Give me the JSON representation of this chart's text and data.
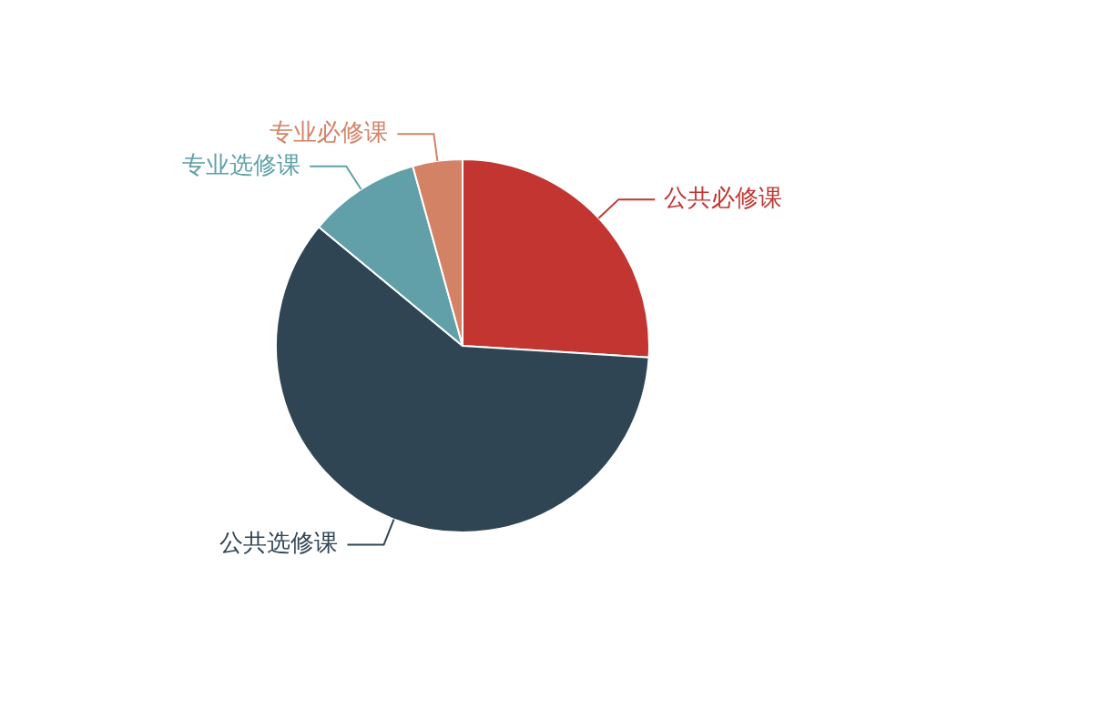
{
  "chart_data": {
    "type": "pie",
    "categories": [
      "公共必修课",
      "公共选修课",
      "专业选修课",
      "专业必修课"
    ],
    "values": [
      26,
      60,
      9.7,
      4.3
    ],
    "colors": [
      "#c23531",
      "#2f4554",
      "#61a0a8",
      "#d48265"
    ],
    "legend": false
  }
}
